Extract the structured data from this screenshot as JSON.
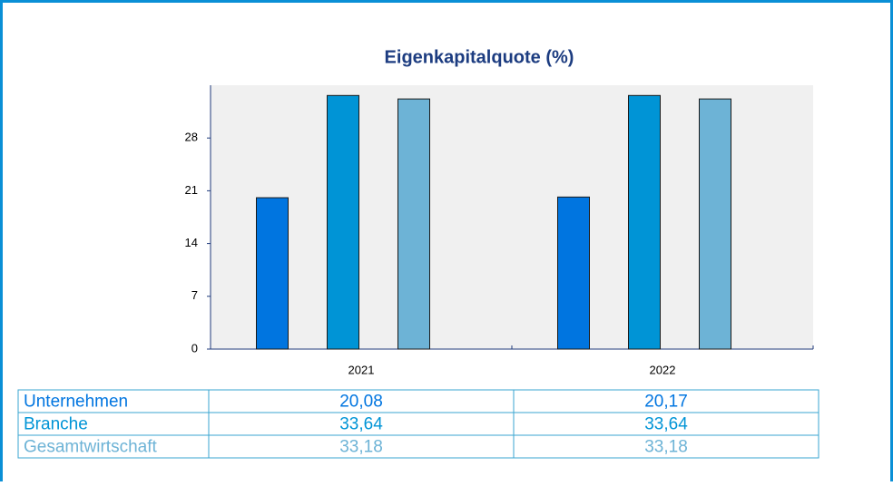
{
  "chart_data": {
    "type": "bar",
    "title": "Eigenkapitalquote (%)",
    "categories": [
      "2021",
      "2022"
    ],
    "series": [
      {
        "name": "Unternehmen",
        "color": "#0075e0",
        "values": [
          20.08,
          20.17
        ],
        "value_labels": [
          "20,08",
          "20,17"
        ]
      },
      {
        "name": "Branche",
        "color": "#0094d6",
        "values": [
          33.64,
          33.64
        ],
        "value_labels": [
          "33,64",
          "33,64"
        ]
      },
      {
        "name": "Gesamtwirtschaft",
        "color": "#6db3d6",
        "values": [
          33.18,
          33.18
        ],
        "value_labels": [
          "33,18",
          "33,18"
        ]
      }
    ],
    "ylim": [
      0,
      35
    ],
    "yticks": [
      0,
      7,
      14,
      21,
      28
    ]
  }
}
